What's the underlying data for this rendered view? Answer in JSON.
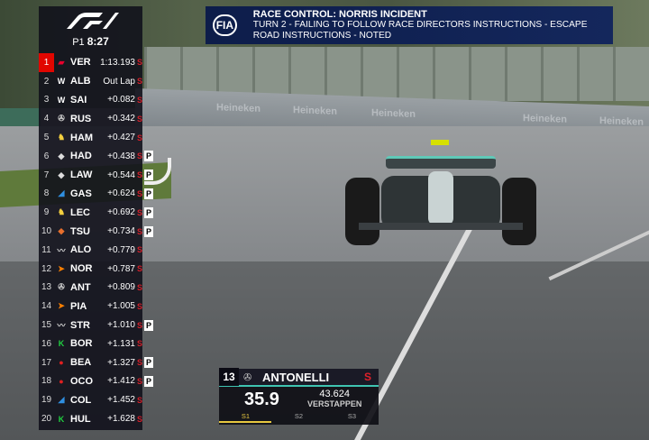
{
  "tower": {
    "logo": "F1",
    "session_label": "P1",
    "session_time": "8:27",
    "rows": [
      {
        "pos": "1",
        "team": "red-bull",
        "team_color": "#e8002d",
        "code": "VER",
        "gap": "1:13.193",
        "tyre": "S",
        "pit": ""
      },
      {
        "pos": "2",
        "team": "williams",
        "team_color": "#ffffff",
        "code": "ALB",
        "gap": "Out Lap",
        "tyre": "S",
        "pit": ""
      },
      {
        "pos": "3",
        "team": "williams",
        "team_color": "#ffffff",
        "code": "SAI",
        "gap": "+0.082",
        "tyre": "S",
        "pit": ""
      },
      {
        "pos": "4",
        "team": "mercedes",
        "team_color": "#cccccc",
        "code": "RUS",
        "gap": "+0.342",
        "tyre": "S",
        "pit": ""
      },
      {
        "pos": "5",
        "team": "ferrari",
        "team_color": "#f4d03f",
        "code": "HAM",
        "gap": "+0.427",
        "tyre": "S",
        "pit": ""
      },
      {
        "pos": "6",
        "team": "racing-bulls",
        "team_color": "#dddddd",
        "code": "HAD",
        "gap": "+0.438",
        "tyre": "S",
        "pit": "P"
      },
      {
        "pos": "7",
        "team": "racing-bulls",
        "team_color": "#dddddd",
        "code": "LAW",
        "gap": "+0.544",
        "tyre": "S",
        "pit": "P"
      },
      {
        "pos": "8",
        "team": "alpine",
        "team_color": "#2f8fe0",
        "code": "GAS",
        "gap": "+0.624",
        "tyre": "S",
        "pit": "P"
      },
      {
        "pos": "9",
        "team": "ferrari",
        "team_color": "#f4d03f",
        "code": "LEC",
        "gap": "+0.692",
        "tyre": "S",
        "pit": "P"
      },
      {
        "pos": "10",
        "team": "racing-bulls",
        "team_color": "#e8702d",
        "code": "TSU",
        "gap": "+0.734",
        "tyre": "S",
        "pit": "P"
      },
      {
        "pos": "11",
        "team": "aston-martin",
        "team_color": "#cccccc",
        "code": "ALO",
        "gap": "+0.779",
        "tyre": "S",
        "pit": ""
      },
      {
        "pos": "12",
        "team": "mclaren",
        "team_color": "#ff8000",
        "code": "NOR",
        "gap": "+0.787",
        "tyre": "S",
        "pit": ""
      },
      {
        "pos": "13",
        "team": "mercedes",
        "team_color": "#cccccc",
        "code": "ANT",
        "gap": "+0.809",
        "tyre": "S",
        "pit": ""
      },
      {
        "pos": "14",
        "team": "mclaren",
        "team_color": "#ff8000",
        "code": "PIA",
        "gap": "+1.005",
        "tyre": "S",
        "pit": ""
      },
      {
        "pos": "15",
        "team": "aston-martin",
        "team_color": "#cccccc",
        "code": "STR",
        "gap": "+1.010",
        "tyre": "S",
        "pit": "P"
      },
      {
        "pos": "16",
        "team": "sauber",
        "team_color": "#20d040",
        "code": "BOR",
        "gap": "+1.131",
        "tyre": "S",
        "pit": ""
      },
      {
        "pos": "17",
        "team": "haas",
        "team_color": "#e02020",
        "code": "BEA",
        "gap": "+1.327",
        "tyre": "S",
        "pit": "P"
      },
      {
        "pos": "18",
        "team": "haas",
        "team_color": "#e02020",
        "code": "OCO",
        "gap": "+1.412",
        "tyre": "S",
        "pit": "P"
      },
      {
        "pos": "19",
        "team": "alpine",
        "team_color": "#2f8fe0",
        "code": "COL",
        "gap": "+1.452",
        "tyre": "S",
        "pit": ""
      },
      {
        "pos": "20",
        "team": "sauber",
        "team_color": "#20d040",
        "code": "HUL",
        "gap": "+1.628",
        "tyre": "S",
        "pit": ""
      }
    ]
  },
  "race_control": {
    "logo": "FIA",
    "title": "RACE CONTROL: NORRIS INCIDENT",
    "message": "TURN 2 - FAILING TO FOLLOW RACE DIRECTORS INSTRUCTIONS - ESCAPE ROAD INSTRUCTIONS - NOTED"
  },
  "driver_box": {
    "number": "13",
    "name": "ANTONELLI",
    "tyre": "S",
    "current_time": "35.9",
    "reference_time": "43.624",
    "reference_driver": "VERSTAPPEN",
    "sectors": [
      "S1",
      "S2",
      "S3"
    ],
    "sector1_progress": 0.33,
    "accent": "#3fc4b1"
  },
  "scene": {
    "banners": [
      "Heineken",
      "Heineken",
      "Heineken",
      "Heineken",
      "Heineken"
    ]
  }
}
